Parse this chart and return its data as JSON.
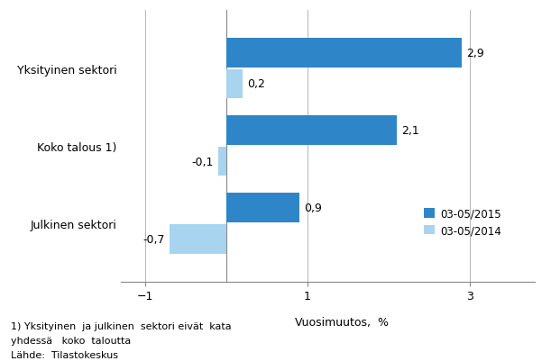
{
  "categories": [
    "Julkinen sektori",
    "Koko talous 1)",
    "Yksityinen sektori"
  ],
  "values_2015": [
    0.9,
    2.1,
    2.9
  ],
  "values_2014": [
    -0.7,
    -0.1,
    0.2
  ],
  "color_2015": "#2E86C8",
  "color_2014": "#A8D4EF",
  "legend_2015": "03-05/2015",
  "legend_2014": "03-05/2014",
  "xlim": [
    -1.3,
    3.8
  ],
  "xticks": [
    -1,
    1,
    3
  ],
  "xlabel": "Vuosimuutos,  %",
  "footnote1": "1) Yksityinen  ja julkinen  sektori eivät  kata",
  "footnote2": "yhdessä   koko  taloutta",
  "footnote3": "Lähde:  Tilastokeskus",
  "bar_height": 0.38,
  "bar_gap": 0.02
}
